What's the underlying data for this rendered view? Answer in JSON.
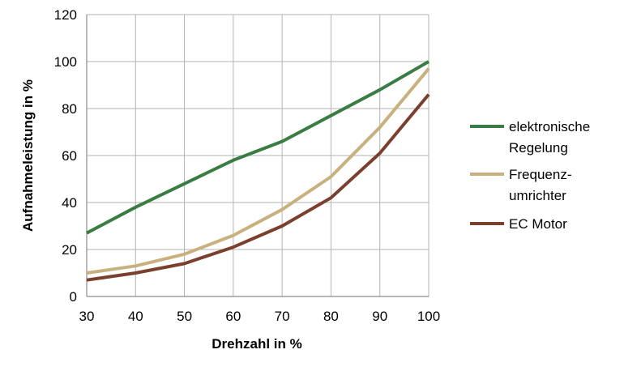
{
  "chart_data": {
    "type": "line",
    "title": "",
    "xlabel": "Drehzahl in %",
    "ylabel": "Aufnahmeleistung in %",
    "x": [
      30,
      40,
      50,
      60,
      70,
      80,
      90,
      100
    ],
    "xlim": [
      30,
      100
    ],
    "ylim": [
      0,
      120
    ],
    "xticks": [
      30,
      40,
      50,
      60,
      70,
      80,
      90,
      100
    ],
    "yticks": [
      0,
      20,
      40,
      60,
      80,
      100,
      120
    ],
    "grid": true,
    "legend_position": "right",
    "series": [
      {
        "name": "elektronische Regelung",
        "legend_lines": [
          "elektronische",
          "Regelung"
        ],
        "color": "#3a7d44",
        "values": [
          27,
          38,
          48,
          58,
          66,
          77,
          88,
          100
        ]
      },
      {
        "name": "Frequenzumrichter",
        "legend_lines": [
          "Frequenz-",
          "umrichter"
        ],
        "color": "#c9b07f",
        "values": [
          10,
          13,
          18,
          26,
          37,
          51,
          72,
          97
        ]
      },
      {
        "name": "EC Motor",
        "legend_lines": [
          "EC Motor"
        ],
        "color": "#7b3f2e",
        "values": [
          7,
          10,
          14,
          21,
          30,
          42,
          61,
          86
        ]
      }
    ]
  }
}
